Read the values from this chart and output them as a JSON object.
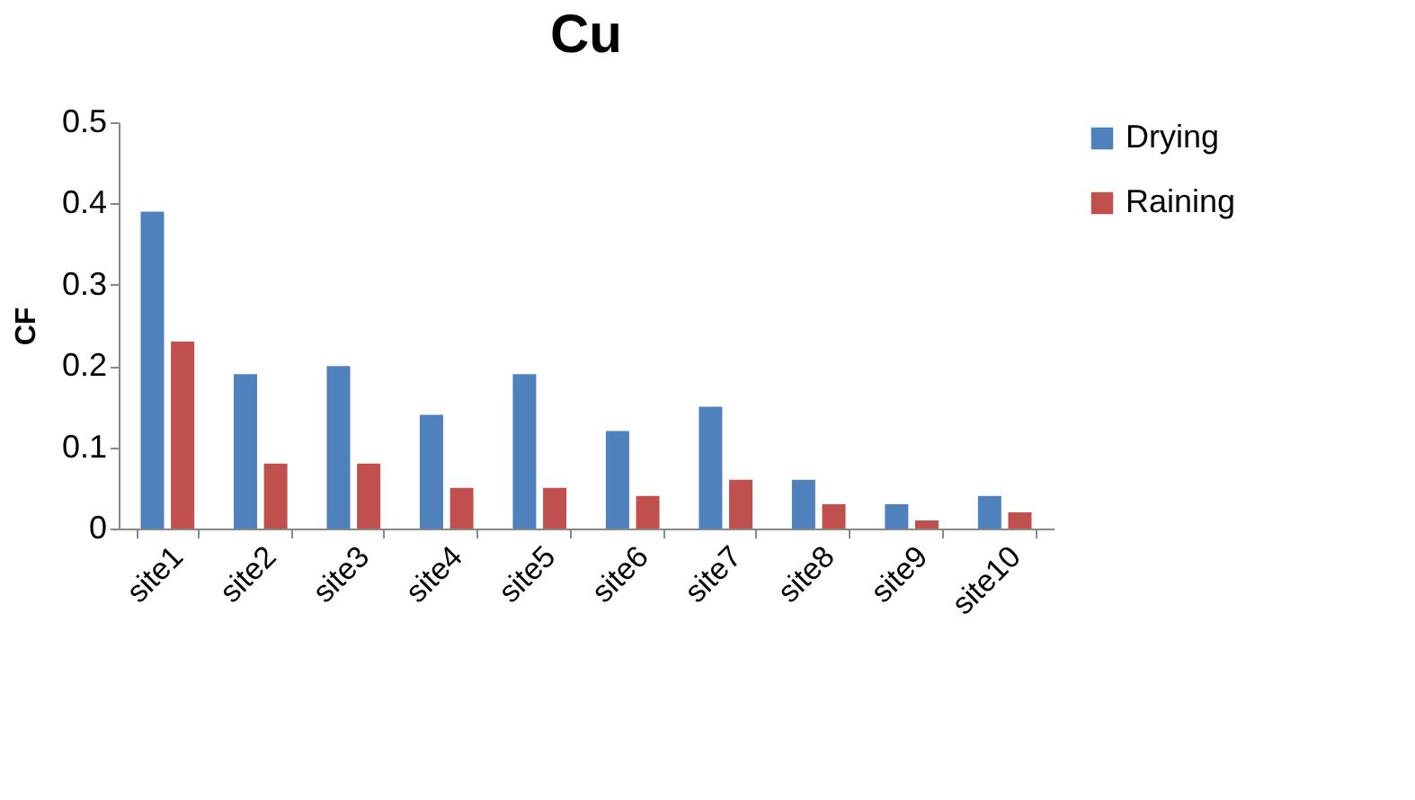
{
  "chart_data": {
    "type": "bar",
    "title": "Cu",
    "ylabel": "CF",
    "categories": [
      "site1",
      "site2",
      "site3",
      "site4",
      "site5",
      "site6",
      "site7",
      "site8",
      "site9",
      "site10"
    ],
    "series": [
      {
        "name": "Drying",
        "color": "#4f81bd",
        "values": [
          0.39,
          0.19,
          0.2,
          0.14,
          0.19,
          0.12,
          0.15,
          0.06,
          0.03,
          0.04
        ]
      },
      {
        "name": "Raining",
        "color": "#c0504d",
        "values": [
          0.23,
          0.08,
          0.08,
          0.05,
          0.05,
          0.04,
          0.06,
          0.03,
          0.01,
          0.02
        ]
      }
    ],
    "ylim": [
      0,
      0.5
    ],
    "yticks": [
      0,
      0.1,
      0.2,
      0.3,
      0.4,
      0.5
    ],
    "grid": false,
    "legend": "right"
  }
}
